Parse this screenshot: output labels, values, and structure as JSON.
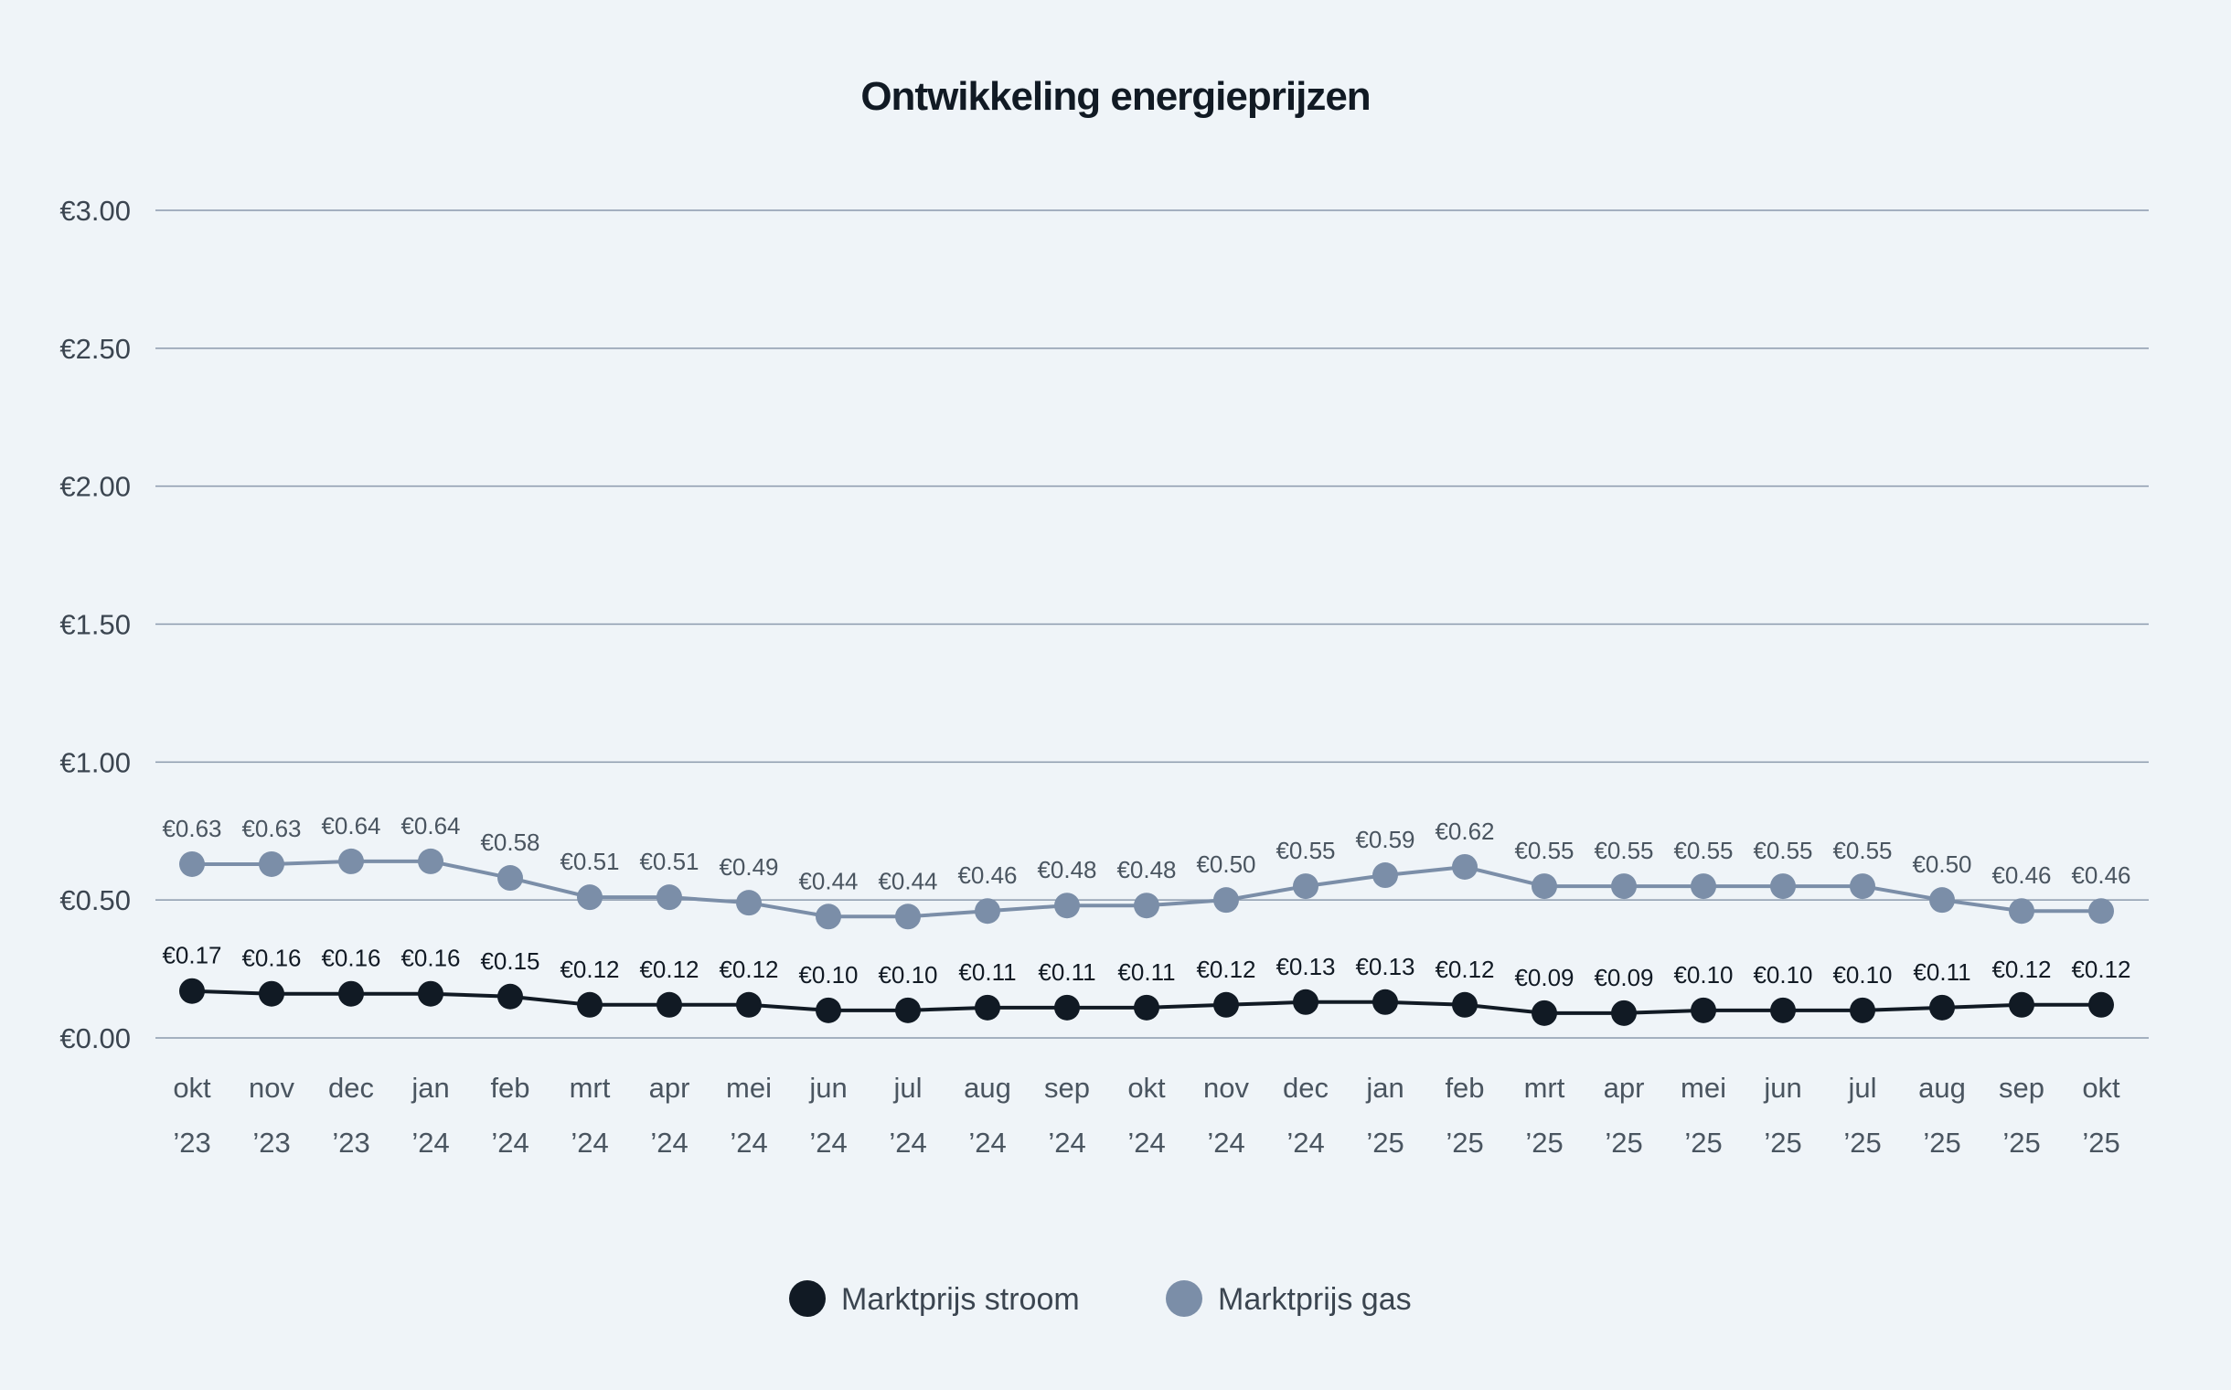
{
  "colors": {
    "stroom": "#111a24",
    "gas": "#7b8ea8",
    "grid": "#8c9aad",
    "background": "#eff4f8"
  },
  "chart_data": {
    "type": "line",
    "title": "Ontwikkeling energieprijzen",
    "xlabel": "",
    "ylabel": "",
    "ylim": [
      0,
      3
    ],
    "yticks": [
      {
        "value": 0,
        "label": "€0.00"
      },
      {
        "value": 0.5,
        "label": "€0.50"
      },
      {
        "value": 1,
        "label": "€1.00"
      },
      {
        "value": 1.5,
        "label": "€1.50"
      },
      {
        "value": 2,
        "label": "€2.00"
      },
      {
        "value": 2.5,
        "label": "€2.50"
      },
      {
        "value": 3,
        "label": "€3.00"
      }
    ],
    "grid": true,
    "legend_position": "bottom-center",
    "categories": [
      {
        "month": "okt",
        "year": "’23"
      },
      {
        "month": "nov",
        "year": "’23"
      },
      {
        "month": "dec",
        "year": "’23"
      },
      {
        "month": "jan",
        "year": "’24"
      },
      {
        "month": "feb",
        "year": "’24"
      },
      {
        "month": "mrt",
        "year": "’24"
      },
      {
        "month": "apr",
        "year": "’24"
      },
      {
        "month": "mei",
        "year": "’24"
      },
      {
        "month": "jun",
        "year": "’24"
      },
      {
        "month": "jul",
        "year": "’24"
      },
      {
        "month": "aug",
        "year": "’24"
      },
      {
        "month": "sep",
        "year": "’24"
      },
      {
        "month": "okt",
        "year": "’24"
      },
      {
        "month": "nov",
        "year": "’24"
      },
      {
        "month": "dec",
        "year": "’24"
      },
      {
        "month": "jan",
        "year": "’25"
      },
      {
        "month": "feb",
        "year": "’25"
      },
      {
        "month": "mrt",
        "year": "’25"
      },
      {
        "month": "apr",
        "year": "’25"
      },
      {
        "month": "mei",
        "year": "’25"
      },
      {
        "month": "jun",
        "year": "’25"
      },
      {
        "month": "jul",
        "year": "’25"
      },
      {
        "month": "aug",
        "year": "’25"
      },
      {
        "month": "sep",
        "year": "’25"
      },
      {
        "month": "okt",
        "year": "’25"
      }
    ],
    "series": [
      {
        "key": "gas",
        "name": "Marktprijs gas",
        "values": [
          0.63,
          0.63,
          0.64,
          0.64,
          0.58,
          0.51,
          0.51,
          0.49,
          0.44,
          0.44,
          0.46,
          0.48,
          0.48,
          0.5,
          0.55,
          0.59,
          0.62,
          0.55,
          0.55,
          0.55,
          0.55,
          0.55,
          0.5,
          0.46,
          0.46
        ],
        "labels": [
          "€0.63",
          "€0.63",
          "€0.64",
          "€0.64",
          "€0.58",
          "€0.51",
          "€0.51",
          "€0.49",
          "€0.44",
          "€0.44",
          "€0.46",
          "€0.48",
          "€0.48",
          "€0.50",
          "€0.55",
          "€0.59",
          "€0.62",
          "€0.55",
          "€0.55",
          "€0.55",
          "€0.55",
          "€0.55",
          "€0.50",
          "€0.46",
          "€0.46"
        ]
      },
      {
        "key": "stroom",
        "name": "Marktprijs stroom",
        "values": [
          0.17,
          0.16,
          0.16,
          0.16,
          0.15,
          0.12,
          0.12,
          0.12,
          0.1,
          0.1,
          0.11,
          0.11,
          0.11,
          0.12,
          0.13,
          0.13,
          0.12,
          0.09,
          0.09,
          0.1,
          0.1,
          0.1,
          0.11,
          0.12,
          0.12
        ],
        "labels": [
          "€0.17",
          "€0.16",
          "€0.16",
          "€0.16",
          "€0.15",
          "€0.12",
          "€0.12",
          "€0.12",
          "€0.10",
          "€0.10",
          "€0.11",
          "€0.11",
          "€0.11",
          "€0.12",
          "€0.13",
          "€0.13",
          "€0.12",
          "€0.09",
          "€0.09",
          "€0.10",
          "€0.10",
          "€0.10",
          "€0.11",
          "€0.12",
          "€0.12"
        ]
      }
    ]
  },
  "legend": [
    {
      "key": "stroom",
      "label": "Marktprijs stroom"
    },
    {
      "key": "gas",
      "label": "Marktprijs gas"
    }
  ]
}
